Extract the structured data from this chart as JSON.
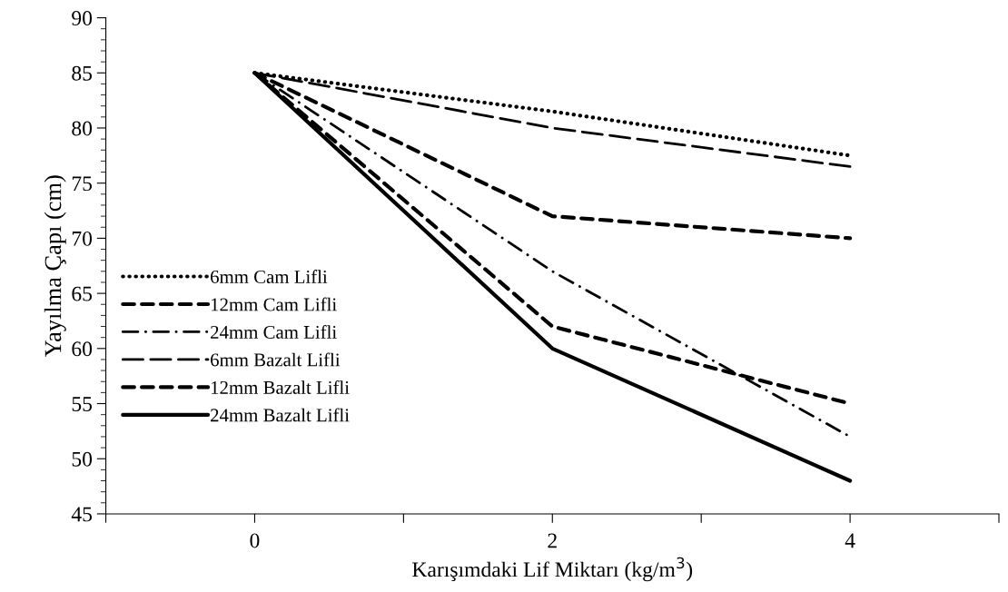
{
  "chart_data": {
    "type": "line",
    "xlabel": "Karışımdaki Lif Miktarı (kg/m$^{3}$)",
    "ylabel": "Yayılma Çapı (cm)",
    "x": [
      0,
      2,
      4
    ],
    "xlim": [
      -1,
      5
    ],
    "xticks": [
      {
        "value": -1,
        "label": null
      },
      0,
      {
        "value": 1,
        "label": null
      },
      2,
      {
        "value": 3,
        "label": null
      },
      4,
      {
        "value": 5,
        "label": null
      }
    ],
    "series": [
      {
        "name": "6mm Cam Lifli",
        "color": "#000000",
        "line_style": "dotted",
        "values": [
          85,
          81.5,
          77.5
        ]
      },
      {
        "name": "12mm Cam Lifli",
        "color": "#000000",
        "line_style": "dashed",
        "values": [
          85,
          72,
          70
        ]
      },
      {
        "name": "24mm Cam Lifli",
        "color": "#000000",
        "line_style": "dashdot",
        "values": [
          85,
          67,
          52
        ]
      },
      {
        "name": "6mm Bazalt Lifli",
        "color": "#000000",
        "line_style": "longdash",
        "values": [
          85,
          80,
          76.5
        ]
      },
      {
        "name": "12mm Bazalt Lifli",
        "color": "#000000",
        "line_style": "dashed",
        "values": [
          85,
          62,
          55
        ]
      },
      {
        "name": "24mm Bazalt Lifli",
        "color": "#000000",
        "line_style": "solid",
        "values": [
          85,
          60,
          48
        ]
      }
    ],
    "ylim": [
      45,
      90
    ],
    "yticks": [
      45,
      50,
      55,
      60,
      65,
      70,
      75,
      80,
      85,
      90
    ],
    "grid": false,
    "legend": "left",
    "marker": "none"
  }
}
